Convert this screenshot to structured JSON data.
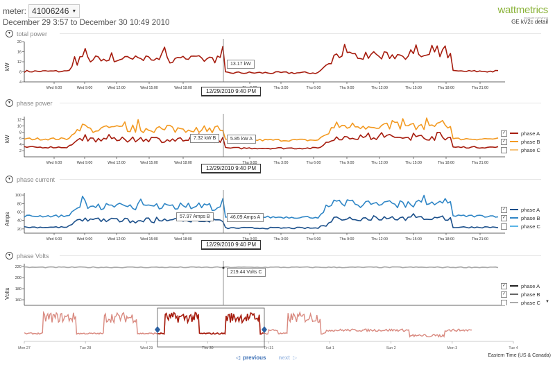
{
  "header": {
    "meter_label": "meter:",
    "meter_value": "41006246",
    "date_range": "December 29 3:57 to December 30 10:49 2010",
    "logo_text": "wattmetrics",
    "logo_tagline": "measure everything",
    "device_label": "GE kV2c detail"
  },
  "colors": {
    "phase_a": "#a61c0e",
    "phase_b": "#f39a22",
    "phase_c": "#f6c37a",
    "current_a": "#1b4f8a",
    "current_b": "#2f86c6",
    "current_c": "#5bb4e6",
    "volts_a": "#222222",
    "volts_b": "#666666",
    "volts_c": "#aaaaaa",
    "nav_line": "#d98a80",
    "nav_selected": "#a61c0e",
    "accent": "#8bb33a"
  },
  "time_axis": [
    "Wed 6:00",
    "Wed 9:00",
    "Wed 12:00",
    "Wed 15:00",
    "Wed 18:00",
    "Thu 0:00",
    "Thu 3:00",
    "Thu 6:00",
    "Thu 9:00",
    "Thu 12:00",
    "Thu 15:00",
    "Thu 18:00",
    "Thu 21:00"
  ],
  "cursor_time": "12/29/2010 9:40 PM",
  "sections": {
    "total_power": {
      "title": "total power",
      "ylabel": "kW",
      "yticks": [
        "20",
        "16",
        "12",
        "8",
        "4"
      ],
      "tooltip": "13.17 kW"
    },
    "phase_power": {
      "title": "phase power",
      "ylabel": "kW",
      "yticks": [
        "12",
        "10",
        "8",
        "6",
        "4",
        "2"
      ],
      "tooltip_left": "7.32 kW B",
      "tooltip_right": "5.85 kW A",
      "legend": [
        {
          "label": "phase A",
          "checked": "✓"
        },
        {
          "label": "phase B",
          "checked": "✓"
        },
        {
          "label": "phase C",
          "checked": ""
        }
      ]
    },
    "phase_current": {
      "title": "phase current",
      "ylabel": "Amps",
      "yticks": [
        "100",
        "80",
        "60",
        "40",
        "20"
      ],
      "tooltip_left": "57.97 Amps B",
      "tooltip_right": "46.09 Amps A",
      "legend": [
        {
          "label": "phase A",
          "checked": "✓"
        },
        {
          "label": "phase B",
          "checked": "✓"
        },
        {
          "label": "phase C",
          "checked": ""
        }
      ]
    },
    "phase_volts": {
      "title": "phase Volts",
      "ylabel": "Volts",
      "yticks": [
        "220",
        "200",
        "180",
        "160"
      ],
      "tooltip": "219.44 Volts C",
      "legend": [
        {
          "label": "phase A",
          "checked": "✓"
        },
        {
          "label": "phase B",
          "checked": "✓"
        },
        {
          "label": "phase C",
          "checked": ""
        }
      ]
    }
  },
  "navigator": {
    "axis": [
      "Mon 27",
      "Tue 28",
      "Wed 29",
      "Thu 30",
      "Fri 31",
      "Sat 1",
      "Sun 2",
      "Mon 3",
      "Tue 4"
    ]
  },
  "pager": {
    "previous": "previous",
    "next": "next"
  },
  "timezone": "Eastern Time (US & Canada)"
}
